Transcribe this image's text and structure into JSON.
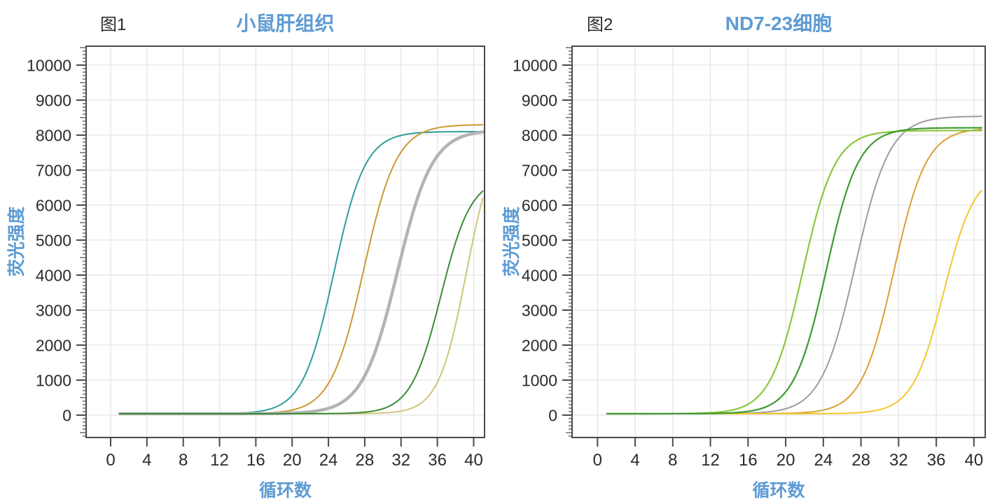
{
  "page": {
    "background": "#ffffff",
    "accent_color": "#5E9BD3",
    "text_color": "#2b2b2b",
    "spine_color": "#4a4a4a",
    "grid_color": "#e8e8e8"
  },
  "chart_data": [
    {
      "type": "line",
      "figure_label": "图1",
      "title": "小鼠肝组织",
      "xlabel": "循环数",
      "ylabel": "荧光强度",
      "x_ticks": [
        0,
        4,
        8,
        12,
        16,
        20,
        24,
        28,
        32,
        36,
        40
      ],
      "y_ticks": [
        0,
        1000,
        2000,
        3000,
        4000,
        5000,
        6000,
        7000,
        8000,
        9000,
        10000
      ],
      "xlim": [
        -2.7,
        41.2
      ],
      "ylim": [
        -640,
        10540
      ],
      "y_minor_tick_step": 100,
      "grid": true,
      "legend": "none",
      "curve_model": "y = baseline + (plateau - baseline) / (1 + exp(-slope * (x - midpoint)))",
      "x_data_range": [
        1,
        41
      ],
      "series": [
        {
          "name": "curve-teal",
          "color": "#2E9E99",
          "line_width": 2,
          "baseline": 40,
          "plateau": 8100,
          "midpoint": 24.6,
          "slope": 0.58
        },
        {
          "name": "curve-orange",
          "color": "#CC9933",
          "line_width": 2,
          "baseline": 40,
          "plateau": 8300,
          "midpoint": 27.9,
          "slope": 0.55
        },
        {
          "name": "curve-gray-thick",
          "color": "#B3B3B3",
          "line_width": 4.5,
          "baseline": 40,
          "plateau": 8150,
          "midpoint": 31.6,
          "slope": 0.52
        },
        {
          "name": "curve-khaki",
          "color": "#CEC67B",
          "line_width": 2,
          "baseline": 40,
          "plateau": 8100,
          "midpoint": 39.2,
          "slope": 0.65
        },
        {
          "name": "curve-green",
          "color": "#3B8C34",
          "line_width": 2,
          "baseline": 40,
          "plateau": 6800,
          "midpoint": 36.4,
          "slope": 0.6
        }
      ]
    },
    {
      "type": "line",
      "figure_label": "图2",
      "title": "ND7-23细胞",
      "xlabel": "循环数",
      "ylabel": "荧光强度",
      "x_ticks": [
        0,
        4,
        8,
        12,
        16,
        20,
        24,
        28,
        32,
        36,
        40
      ],
      "y_ticks": [
        0,
        1000,
        2000,
        3000,
        4000,
        5000,
        6000,
        7000,
        8000,
        9000,
        10000
      ],
      "xlim": [
        -2.7,
        41.2
      ],
      "ylim": [
        -640,
        10540
      ],
      "y_minor_tick_step": 100,
      "grid": true,
      "legend": "none",
      "curve_model": "y = baseline + (plateau - baseline) / (1 + exp(-slope * (x - midpoint)))",
      "x_data_range": [
        1,
        40.8
      ],
      "series": [
        {
          "name": "curve-gray",
          "color": "#9C9C9C",
          "line_width": 2,
          "baseline": 40,
          "plateau": 8540,
          "midpoint": 27.4,
          "slope": 0.55
        },
        {
          "name": "curve-amber",
          "color": "#D9A032",
          "line_width": 2,
          "baseline": 40,
          "plateau": 8200,
          "midpoint": 31.5,
          "slope": 0.58
        },
        {
          "name": "curve-yellow",
          "color": "#F2C72E",
          "line_width": 2,
          "baseline": 40,
          "plateau": 7000,
          "midpoint": 36.8,
          "slope": 0.6
        },
        {
          "name": "curve-light-green",
          "color": "#8CC63E",
          "line_width": 2.2,
          "baseline": 40,
          "plateau": 8130,
          "midpoint": 21.8,
          "slope": 0.58
        },
        {
          "name": "curve-dark-green",
          "color": "#3E9934",
          "line_width": 2.2,
          "baseline": 40,
          "plateau": 8210,
          "midpoint": 24.3,
          "slope": 0.58
        }
      ]
    }
  ]
}
